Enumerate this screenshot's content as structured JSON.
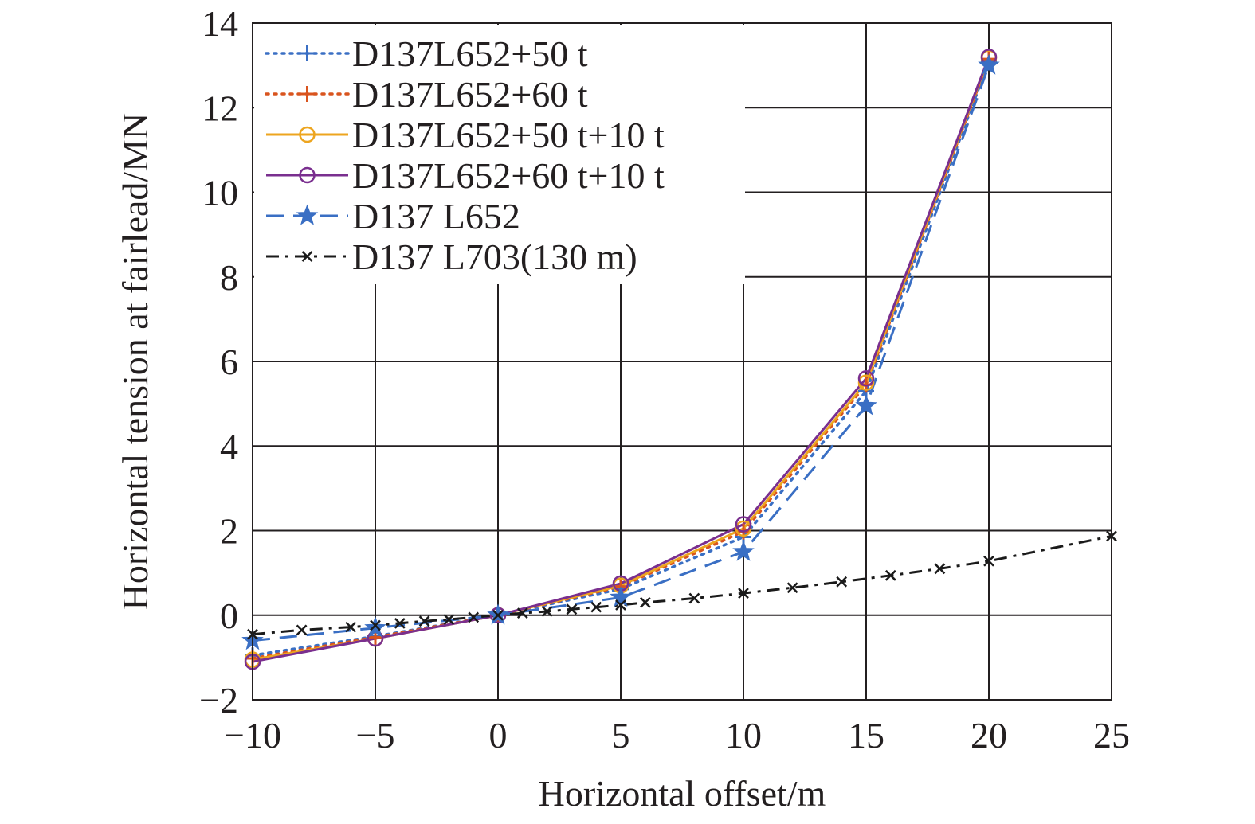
{
  "chart_data": {
    "type": "line",
    "title": "",
    "xlabel": "Horizontal offset/m",
    "ylabel": "Horizontal tension at fairlead/MN",
    "xlim": [
      -10,
      25
    ],
    "ylim": [
      -2,
      14
    ],
    "xticks": [
      -10,
      -5,
      0,
      5,
      10,
      15,
      20,
      25
    ],
    "yticks": [
      -2,
      0,
      2,
      4,
      6,
      8,
      10,
      12,
      14
    ],
    "xtick_labels": [
      "−10",
      "−5",
      "0",
      "5",
      "10",
      "15",
      "20",
      "25"
    ],
    "ytick_labels": [
      "−2",
      "0",
      "2",
      "4",
      "6",
      "8",
      "10",
      "12",
      "14"
    ],
    "grid": true,
    "legend_position": "top-left",
    "series": [
      {
        "name": "D137L652+50 t",
        "color": "#3a6fc4",
        "line_style": "dotted",
        "marker": "plus",
        "x": [
          -10,
          -5,
          0,
          5,
          10,
          15,
          20
        ],
        "y": [
          -0.95,
          -0.5,
          0,
          0.62,
          1.85,
          5.3,
          13.1
        ]
      },
      {
        "name": "D137L652+60 t",
        "color": "#d9541e",
        "line_style": "dotted",
        "marker": "plus",
        "x": [
          -10,
          -5,
          0,
          5,
          10,
          15,
          20
        ],
        "y": [
          -1.02,
          -0.52,
          0,
          0.68,
          1.98,
          5.45,
          13.15
        ]
      },
      {
        "name": "D137L652+50 t+10 t",
        "color": "#eda51f",
        "line_style": "solid",
        "marker": "circle",
        "x": [
          -10,
          -5,
          0,
          5,
          10,
          15,
          20
        ],
        "y": [
          -1.05,
          -0.55,
          0,
          0.7,
          2.05,
          5.5,
          13.18
        ]
      },
      {
        "name": "D137L652+60 t+10 t",
        "color": "#7a2f8f",
        "line_style": "solid",
        "marker": "circle",
        "x": [
          -10,
          -5,
          0,
          5,
          10,
          15,
          20
        ],
        "y": [
          -1.1,
          -0.55,
          0,
          0.75,
          2.15,
          5.6,
          13.2
        ]
      },
      {
        "name": "D137 L652",
        "color": "#3a6fc4",
        "line_style": "dashed",
        "marker": "star",
        "x": [
          -10,
          -5,
          0,
          5,
          10,
          15,
          20
        ],
        "y": [
          -0.6,
          -0.3,
          0,
          0.42,
          1.5,
          4.95,
          13.0
        ]
      },
      {
        "name": "D137 L703(130 m)",
        "color": "#1a1a1a",
        "line_style": "dashdot",
        "marker": "x",
        "x": [
          -10,
          -8,
          -6,
          -5,
          -4,
          -3,
          -2,
          -1,
          0,
          1,
          2,
          3,
          4,
          5,
          6,
          8,
          10,
          12,
          14,
          16,
          18,
          20,
          25
        ],
        "y": [
          -0.45,
          -0.35,
          -0.28,
          -0.24,
          -0.19,
          -0.14,
          -0.1,
          -0.05,
          0,
          0.05,
          0.09,
          0.14,
          0.19,
          0.24,
          0.3,
          0.4,
          0.52,
          0.65,
          0.79,
          0.94,
          1.1,
          1.28,
          1.87
        ]
      }
    ]
  }
}
